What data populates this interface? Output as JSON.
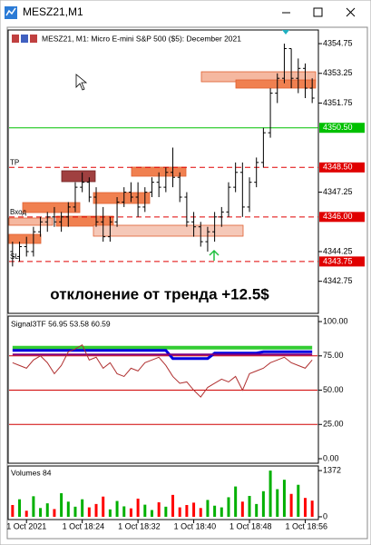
{
  "window": {
    "title": "MESZ21,M1"
  },
  "chart_data": {
    "type": "ohlc",
    "header": "MESZ21, M1:  Micro E-mini S&P 500 ($5): December 2021",
    "annotation": "отклонение от тренда +12.5$",
    "categories": [
      null,
      null,
      "1 Oct 2021",
      null,
      null,
      null,
      null,
      null,
      null,
      null,
      "1 Oct 18:24",
      null,
      null,
      null,
      null,
      null,
      null,
      null,
      "1 Oct 18:32",
      null,
      null,
      null,
      null,
      null,
      null,
      null,
      "1 Oct 18:40",
      null,
      null,
      null,
      null,
      null,
      null,
      null,
      "1 Oct 18:48",
      null,
      null,
      null,
      null,
      null,
      null,
      null,
      "1 Oct 18:56",
      null
    ],
    "candles": [
      [
        4344.25,
        4344.75,
        4343.5,
        4344.0
      ],
      [
        4344.0,
        4344.75,
        4343.75,
        4344.5
      ],
      [
        4344.5,
        4345.0,
        4344.0,
        4344.25
      ],
      [
        4344.25,
        4345.5,
        4344.0,
        4345.25
      ],
      [
        4345.25,
        4346.0,
        4345.0,
        4345.75
      ],
      [
        4345.75,
        4346.25,
        4345.25,
        4346.0
      ],
      [
        4346.0,
        4346.5,
        4345.5,
        4345.75
      ],
      [
        4345.75,
        4346.25,
        4345.25,
        4346.0
      ],
      [
        4346.0,
        4346.75,
        4345.5,
        4346.5
      ],
      [
        4346.5,
        4347.75,
        4346.25,
        4347.5
      ],
      [
        4347.5,
        4348.25,
        4347.25,
        4347.75
      ],
      [
        4347.75,
        4348.0,
        4346.75,
        4347.0
      ],
      [
        4347.0,
        4347.5,
        4345.5,
        4345.75
      ],
      [
        4345.75,
        4346.5,
        4344.75,
        4345.0
      ],
      [
        4345.0,
        4346.0,
        4344.75,
        4345.75
      ],
      [
        4345.75,
        4347.0,
        4345.5,
        4346.75
      ],
      [
        4346.75,
        4347.5,
        4346.5,
        4347.25
      ],
      [
        4347.25,
        4347.75,
        4346.75,
        4347.0
      ],
      [
        4347.0,
        4347.75,
        4346.0,
        4346.5
      ],
      [
        4346.5,
        4347.5,
        4346.25,
        4347.25
      ],
      [
        4347.25,
        4348.0,
        4347.0,
        4347.75
      ],
      [
        4347.75,
        4348.25,
        4347.0,
        4347.5
      ],
      [
        4347.5,
        4348.5,
        4347.25,
        4348.25
      ],
      [
        4348.25,
        4349.5,
        4347.5,
        4348.0
      ],
      [
        4348.0,
        4348.25,
        4346.75,
        4347.0
      ],
      [
        4347.0,
        4347.25,
        4345.5,
        4345.75
      ],
      [
        4345.75,
        4346.25,
        4345.0,
        4345.5
      ],
      [
        4345.5,
        4345.75,
        4344.5,
        4344.75
      ],
      [
        4344.75,
        4345.5,
        4344.25,
        4345.25
      ],
      [
        4345.25,
        4346.25,
        4344.75,
        4346.0
      ],
      [
        4346.0,
        4346.5,
        4345.5,
        4346.25
      ],
      [
        4346.25,
        4347.75,
        4346.0,
        4347.5
      ],
      [
        4347.5,
        4348.75,
        4347.25,
        4348.25
      ],
      [
        4348.25,
        4348.75,
        4346.0,
        4346.5
      ],
      [
        4346.5,
        4348.0,
        4346.25,
        4347.75
      ],
      [
        4347.75,
        4349.0,
        4347.5,
        4348.75
      ],
      [
        4348.75,
        4350.5,
        4348.5,
        4350.25
      ],
      [
        4350.25,
        4352.5,
        4350.0,
        4352.25
      ],
      [
        4352.25,
        4353.25,
        4351.75,
        4353.0
      ],
      [
        4353.0,
        4354.75,
        4352.75,
        4354.5
      ],
      [
        4354.5,
        4354.5,
        4352.5,
        4353.0
      ],
      [
        4353.0,
        4354.0,
        4352.25,
        4353.5
      ],
      [
        4353.5,
        4353.75,
        4352.0,
        4352.5
      ],
      [
        4352.5,
        4353.0,
        4351.75,
        4352.0
      ]
    ],
    "ylim": [
      4341.13,
      4355.44
    ],
    "yticks": [
      4354.75,
      4353.25,
      4351.75,
      4347.25,
      4344.25,
      4342.75
    ],
    "levels": [
      {
        "value": 4350.5,
        "label": "4350.50",
        "color": "#00c000",
        "dashed": false
      },
      {
        "name": "TP",
        "value": 4348.5,
        "label": "4348.50",
        "color": "#e00000",
        "dashed": true
      },
      {
        "name": "Вход",
        "value": 4346,
        "label": "4346.00",
        "color": "#e00000",
        "dashed": true
      },
      {
        "name": "SL",
        "value": 4343.75,
        "label": "4343.75",
        "color": "#e00000",
        "dashed": true
      }
    ],
    "indicator": {
      "title": "Signal3TF 56.95 53.58 60.59",
      "ylim": [
        -3.3,
        104
      ],
      "yticks": [
        {
          "value": 100,
          "label": "100.00"
        },
        {
          "value": 75,
          "label": "75.00"
        },
        {
          "value": 50,
          "label": "50.00"
        },
        {
          "value": 25,
          "label": "25.00"
        },
        {
          "value": 0,
          "label": "0.00"
        }
      ],
      "levels": [
        75,
        50,
        25
      ],
      "series": [
        {
          "color": "#33cc33",
          "width": 4,
          "values": [
            81,
            81,
            81,
            81,
            81,
            81,
            81,
            81,
            81,
            81,
            81,
            81,
            81,
            81,
            81,
            81,
            81,
            81,
            81,
            81,
            81,
            81,
            81,
            81,
            81,
            81,
            81,
            81,
            81,
            81,
            81,
            81,
            81,
            81,
            81,
            81,
            81,
            81,
            81,
            81,
            81,
            81,
            81,
            81
          ]
        },
        {
          "color": "#0000e0",
          "width": 3,
          "values": [
            79,
            79,
            79,
            79,
            79,
            79,
            79,
            79,
            79,
            79,
            79,
            79,
            79,
            79,
            79,
            79,
            79,
            79,
            79,
            79,
            79,
            79,
            79,
            73,
            73,
            73,
            73,
            73,
            73,
            77,
            77,
            77,
            77,
            77,
            77,
            77,
            78,
            78,
            78,
            78,
            78,
            78,
            78,
            78
          ]
        },
        {
          "color": "#800080",
          "width": 2,
          "values": [
            76,
            76,
            76,
            76,
            76,
            76,
            76,
            76,
            76,
            76,
            76,
            76,
            76,
            76,
            76,
            76,
            76,
            76,
            76,
            76,
            76,
            76,
            76,
            76,
            76,
            76,
            76,
            76,
            76,
            76,
            76,
            76,
            76,
            76,
            76,
            76,
            76,
            76,
            76,
            76,
            76,
            76,
            76,
            76
          ]
        },
        {
          "color": "#b03030",
          "width": 1,
          "values": [
            70,
            68,
            66,
            72,
            75,
            70,
            62,
            68,
            78,
            80,
            83,
            72,
            74,
            66,
            70,
            62,
            60,
            66,
            64,
            70,
            72,
            74,
            68,
            60,
            55,
            56,
            50,
            45,
            52,
            55,
            58,
            56,
            60,
            50,
            62,
            64,
            66,
            70,
            72,
            74,
            70,
            68,
            66,
            72
          ]
        }
      ]
    },
    "volume": {
      "title": "Volumes 84",
      "ylim": [
        -82,
        1509
      ],
      "yticks": [
        1372,
        0
      ],
      "up_color": "#00b000",
      "down_color": "#ff0000",
      "values": [
        350,
        520,
        180,
        610,
        260,
        400,
        230,
        700,
        450,
        300,
        520,
        280,
        380,
        600,
        220,
        470,
        310,
        250,
        540,
        360,
        200,
        430,
        300,
        650,
        280,
        350,
        420,
        260,
        500,
        330,
        280,
        580,
        900,
        450,
        620,
        380,
        760,
        1372,
        820,
        1100,
        680,
        950,
        560,
        480
      ]
    }
  }
}
